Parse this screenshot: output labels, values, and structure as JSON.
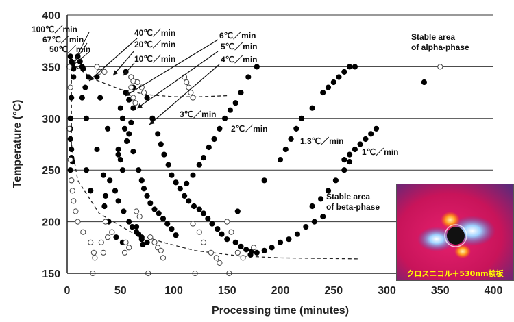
{
  "chart_data": {
    "type": "scatter",
    "xlabel": "Processing time (minutes)",
    "ylabel": "Temperature (°C)",
    "xlim": [
      0,
      400
    ],
    "ylim": [
      150,
      400
    ],
    "x_ticks": [
      "0",
      "50",
      "100",
      "150",
      "200",
      "250",
      "300",
      "350",
      "400"
    ],
    "y_ticks": [
      "150",
      "200",
      "250",
      "300",
      "350",
      "400"
    ],
    "grid": "horizontal",
    "legend": "none",
    "series": [
      {
        "marker": "filled",
        "points": [
          [
            3,
            360
          ],
          [
            4,
            355
          ],
          [
            5,
            352
          ],
          [
            6,
            348
          ],
          [
            6,
            340
          ],
          [
            4,
            320
          ],
          [
            3,
            290
          ],
          [
            3,
            280
          ],
          [
            4,
            270
          ],
          [
            4,
            262
          ],
          [
            5,
            258
          ],
          [
            3,
            250
          ],
          [
            4,
            240
          ],
          [
            3,
            300
          ],
          [
            14,
            350
          ],
          [
            20,
            340
          ],
          [
            17,
            330
          ],
          [
            18,
            300
          ],
          [
            18,
            250
          ],
          [
            22,
            230
          ],
          [
            14,
            320
          ],
          [
            10,
            360
          ],
          [
            12,
            355
          ],
          [
            15,
            348
          ],
          [
            28,
            340
          ],
          [
            31,
            320
          ],
          [
            38,
            290
          ],
          [
            34,
            245
          ],
          [
            28,
            270
          ],
          [
            36,
            225
          ],
          [
            35,
            215
          ],
          [
            39,
            200
          ],
          [
            42,
            190
          ],
          [
            46,
            185
          ],
          [
            52,
            180
          ],
          [
            55,
            345
          ],
          [
            55,
            325
          ],
          [
            50,
            310
          ],
          [
            52,
            300
          ],
          [
            54,
            290
          ],
          [
            48,
            270
          ],
          [
            50,
            260
          ],
          [
            52,
            250
          ],
          [
            40,
            240
          ],
          [
            45,
            230
          ],
          [
            48,
            220
          ],
          [
            53,
            210
          ],
          [
            58,
            200
          ],
          [
            61,
            195
          ],
          [
            65,
            190
          ],
          [
            70,
            185
          ],
          [
            75,
            180
          ],
          [
            48,
            265
          ],
          [
            60,
            340
          ],
          [
            62,
            330
          ],
          [
            58,
            318
          ],
          [
            62,
            310
          ],
          [
            60,
            296
          ],
          [
            58,
            285
          ],
          [
            56,
            278
          ],
          [
            62,
            268
          ],
          [
            67,
            250
          ],
          [
            70,
            240
          ],
          [
            72,
            232
          ],
          [
            75,
            225
          ],
          [
            78,
            218
          ],
          [
            82,
            212
          ],
          [
            86,
            208
          ],
          [
            90,
            203
          ],
          [
            94,
            198
          ],
          [
            98,
            193
          ],
          [
            102,
            187
          ],
          [
            65,
            195
          ],
          [
            67,
            188
          ],
          [
            70,
            183
          ],
          [
            71,
            178
          ],
          [
            75,
            320
          ],
          [
            80,
            300
          ],
          [
            85,
            285
          ],
          [
            88,
            275
          ],
          [
            91,
            265
          ],
          [
            95,
            255
          ],
          [
            98,
            245
          ],
          [
            102,
            238
          ],
          [
            106,
            232
          ],
          [
            110,
            225
          ],
          [
            114,
            220
          ],
          [
            119,
            215
          ],
          [
            124,
            212
          ],
          [
            128,
            208
          ],
          [
            132,
            203
          ],
          [
            136,
            198
          ],
          [
            141,
            193
          ],
          [
            145,
            188
          ],
          [
            150,
            183
          ],
          [
            158,
            180
          ],
          [
            163,
            176
          ],
          [
            168,
            173
          ],
          [
            173,
            171
          ],
          [
            178,
            350
          ],
          [
            170,
            340
          ],
          [
            163,
            325
          ],
          [
            158,
            315
          ],
          [
            153,
            308
          ],
          [
            148,
            300
          ],
          [
            143,
            290
          ],
          [
            138,
            280
          ],
          [
            133,
            272
          ],
          [
            128,
            262
          ],
          [
            124,
            255
          ],
          [
            118,
            245
          ],
          [
            112,
            237
          ],
          [
            160,
            210
          ],
          [
            185,
            240
          ],
          [
            200,
            260
          ],
          [
            205,
            270
          ],
          [
            210,
            280
          ],
          [
            215,
            290
          ],
          [
            220,
            300
          ],
          [
            230,
            310
          ],
          [
            240,
            325
          ],
          [
            245,
            330
          ],
          [
            250,
            335
          ],
          [
            255,
            340
          ],
          [
            260,
            345
          ],
          [
            265,
            350
          ],
          [
            270,
            350
          ],
          [
            230,
            215
          ],
          [
            238,
            222
          ],
          [
            245,
            230
          ],
          [
            252,
            240
          ],
          [
            260,
            250
          ],
          [
            265,
            258
          ],
          [
            240,
            205
          ],
          [
            232,
            200
          ],
          [
            224,
            195
          ],
          [
            216,
            188
          ],
          [
            208,
            183
          ],
          [
            200,
            180
          ],
          [
            192,
            175
          ],
          [
            185,
            172
          ],
          [
            178,
            170
          ],
          [
            172,
            168
          ],
          [
            290,
            290
          ],
          [
            285,
            285
          ],
          [
            280,
            280
          ],
          [
            275,
            275
          ],
          [
            270,
            270
          ],
          [
            265,
            265
          ],
          [
            260,
            260
          ],
          [
            335,
            335
          ]
        ]
      },
      {
        "marker": "open",
        "points": [
          [
            2,
            350
          ],
          [
            3,
            330
          ],
          [
            2,
            290
          ],
          [
            3,
            260
          ],
          [
            4,
            240
          ],
          [
            5,
            230
          ],
          [
            6,
            220
          ],
          [
            8,
            210
          ],
          [
            10,
            200
          ],
          [
            15,
            190
          ],
          [
            22,
            180
          ],
          [
            25,
            170
          ],
          [
            26,
            165
          ],
          [
            24,
            150
          ],
          [
            32,
            180
          ],
          [
            34,
            170
          ],
          [
            28,
            350
          ],
          [
            30,
            345
          ],
          [
            36,
            200
          ],
          [
            38,
            185
          ],
          [
            42,
            190
          ],
          [
            55,
            180
          ],
          [
            58,
            175
          ],
          [
            54,
            170
          ],
          [
            60,
            340
          ],
          [
            62,
            336
          ],
          [
            66,
            335
          ],
          [
            70,
            330
          ],
          [
            72,
            325
          ],
          [
            60,
            330
          ],
          [
            62,
            320
          ],
          [
            64,
            315
          ],
          [
            65,
            210
          ],
          [
            68,
            205
          ],
          [
            78,
            185
          ],
          [
            82,
            180
          ],
          [
            85,
            175
          ],
          [
            88,
            172
          ],
          [
            90,
            165
          ],
          [
            76,
            150
          ],
          [
            110,
            340
          ],
          [
            112,
            335
          ],
          [
            114,
            330
          ],
          [
            116,
            325
          ],
          [
            118,
            320
          ],
          [
            118,
            198
          ],
          [
            124,
            190
          ],
          [
            128,
            180
          ],
          [
            135,
            170
          ],
          [
            140,
            165
          ],
          [
            143,
            160
          ],
          [
            152,
            150
          ],
          [
            120,
            150
          ],
          [
            150,
            200
          ],
          [
            154,
            190
          ],
          [
            160,
            170
          ],
          [
            165,
            165
          ],
          [
            175,
            175
          ],
          [
            350,
            350
          ],
          [
            35,
            345
          ]
        ]
      }
    ],
    "dashed_curves": [
      {
        "points": [
          [
            8,
            350
          ],
          [
            25,
            338
          ],
          [
            50,
            328
          ],
          [
            75,
            323
          ],
          [
            100,
            321
          ],
          [
            125,
            321
          ],
          [
            150,
            322
          ]
        ]
      },
      {
        "points": [
          [
            4,
            275
          ],
          [
            10,
            240
          ],
          [
            30,
            208
          ],
          [
            60,
            190
          ],
          [
            90,
            180
          ],
          [
            120,
            172
          ],
          [
            160,
            167
          ],
          [
            200,
            165
          ],
          [
            275,
            164
          ]
        ]
      }
    ],
    "rate_labels": [
      {
        "text": "100℃／min"
      },
      {
        "text": "67℃／min"
      },
      {
        "text": "50℃／min"
      },
      {
        "text": "40℃／min"
      },
      {
        "text": "20℃／min"
      },
      {
        "text": "10℃／min"
      },
      {
        "text": "6℃／min"
      },
      {
        "text": "5℃／min"
      },
      {
        "text": "4℃／min"
      },
      {
        "text": "3℃／min"
      },
      {
        "text": "2℃／min"
      },
      {
        "text": "1.3℃／min"
      },
      {
        "text": "1℃／min"
      }
    ],
    "area_labels": [
      {
        "lines": [
          "Stable area",
          "of alpha-phase"
        ]
      },
      {
        "lines": [
          "Stable area",
          "of beta-phase"
        ]
      }
    ]
  },
  "inset": {
    "caption": "クロスニコル＋530nm検板",
    "background_color": "#c8145a",
    "caption_color": "#ffff00"
  }
}
